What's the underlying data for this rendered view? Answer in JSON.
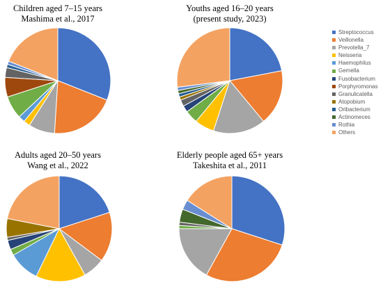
{
  "colors": {
    "Streptococcus": "#4472C4",
    "Veillonella": "#ED7D31",
    "Prevotella_7": "#A5A5A5",
    "Neisseria": "#FFC000",
    "Haemophilus": "#5B9BD5",
    "Gemella": "#70AD47",
    "Fusobacterium": "#264478",
    "Porphyromonas": "#9E480E",
    "Granulicatella": "#636363",
    "Atopobium": "#997300",
    "Oribacterium": "#255E91",
    "Actinomeces": "#43682B",
    "Rothia": "#698ED0",
    "Others": "#F4A261"
  },
  "legend": {
    "items": [
      "Streptococcus",
      "Veillonella",
      "Prevotella_7",
      "Neisseria",
      "Haemophilus",
      "Gemella",
      "Fusobacterium",
      "Porphyromonas",
      "Granulicatella",
      "Atopobium",
      "Oribacterium",
      "Actinomeces",
      "Rothia",
      "Others"
    ]
  },
  "chart_data": [
    {
      "type": "pie",
      "title_line1": "Children aged 7–15 years",
      "title_line2": "Mashima et al., 2017",
      "slices": [
        {
          "label": "Streptococcus",
          "value": 31
        },
        {
          "label": "Veillonella",
          "value": 20
        },
        {
          "label": "Prevotella_7",
          "value": 8
        },
        {
          "label": "Neisseria",
          "value": 2
        },
        {
          "label": "Haemophilus",
          "value": 2
        },
        {
          "label": "Gemella",
          "value": 7
        },
        {
          "label": "Fusobacterium",
          "value": 0
        },
        {
          "label": "Porphyromonas",
          "value": 6
        },
        {
          "label": "Granulicatella",
          "value": 3
        },
        {
          "label": "Atopobium",
          "value": 0
        },
        {
          "label": "Oribacterium",
          "value": 1
        },
        {
          "label": "Actinomeces",
          "value": 0
        },
        {
          "label": "Rothia",
          "value": 1
        },
        {
          "label": "Others",
          "value": 19
        }
      ]
    },
    {
      "type": "pie",
      "title_line1": "Youths aged 16–20 years",
      "title_line2": "(present study, 2023)",
      "slices": [
        {
          "label": "Streptococcus",
          "value": 22
        },
        {
          "label": "Veillonella",
          "value": 17
        },
        {
          "label": "Prevotella_7",
          "value": 16
        },
        {
          "label": "Neisseria",
          "value": 6
        },
        {
          "label": "Haemophilus",
          "value": 0
        },
        {
          "label": "Gemella",
          "value": 4
        },
        {
          "label": "Fusobacterium",
          "value": 2
        },
        {
          "label": "Porphyromonas",
          "value": 0
        },
        {
          "label": "Granulicatella",
          "value": 2
        },
        {
          "label": "Atopobium",
          "value": 1
        },
        {
          "label": "Oribacterium",
          "value": 1
        },
        {
          "label": "Actinomeces",
          "value": 1
        },
        {
          "label": "Rothia",
          "value": 1
        },
        {
          "label": "Others",
          "value": 27
        }
      ]
    },
    {
      "type": "pie",
      "title_line1": "Adults aged 20–50 years",
      "title_line2": "Wang et al., 2022",
      "slices": [
        {
          "label": "Streptococcus",
          "value": 21
        },
        {
          "label": "Veillonella",
          "value": 16
        },
        {
          "label": "Prevotella_7",
          "value": 7
        },
        {
          "label": "Neisseria",
          "value": 16
        },
        {
          "label": "Haemophilus",
          "value": 10
        },
        {
          "label": "Gemella",
          "value": 2
        },
        {
          "label": "Fusobacterium",
          "value": 3
        },
        {
          "label": "Porphyromonas",
          "value": 0
        },
        {
          "label": "Granulicatella",
          "value": 1
        },
        {
          "label": "Atopobium",
          "value": 6
        },
        {
          "label": "Oribacterium",
          "value": 0
        },
        {
          "label": "Actinomeces",
          "value": 0
        },
        {
          "label": "Rothia",
          "value": 0
        },
        {
          "label": "Others",
          "value": 23
        }
      ]
    },
    {
      "type": "pie",
      "title_line1": "Elderly people aged 65+ years",
      "title_line2": "Takeshita et al., 2011",
      "slices": [
        {
          "label": "Streptococcus",
          "value": 30
        },
        {
          "label": "Veillonella",
          "value": 28
        },
        {
          "label": "Prevotella_7",
          "value": 17
        },
        {
          "label": "Neisseria",
          "value": 0
        },
        {
          "label": "Haemophilus",
          "value": 0
        },
        {
          "label": "Gemella",
          "value": 1
        },
        {
          "label": "Fusobacterium",
          "value": 0
        },
        {
          "label": "Porphyromonas",
          "value": 0
        },
        {
          "label": "Granulicatella",
          "value": 1
        },
        {
          "label": "Atopobium",
          "value": 0
        },
        {
          "label": "Oribacterium",
          "value": 0
        },
        {
          "label": "Actinomeces",
          "value": 4
        },
        {
          "label": "Rothia",
          "value": 3
        },
        {
          "label": "Others",
          "value": 16
        }
      ]
    }
  ]
}
